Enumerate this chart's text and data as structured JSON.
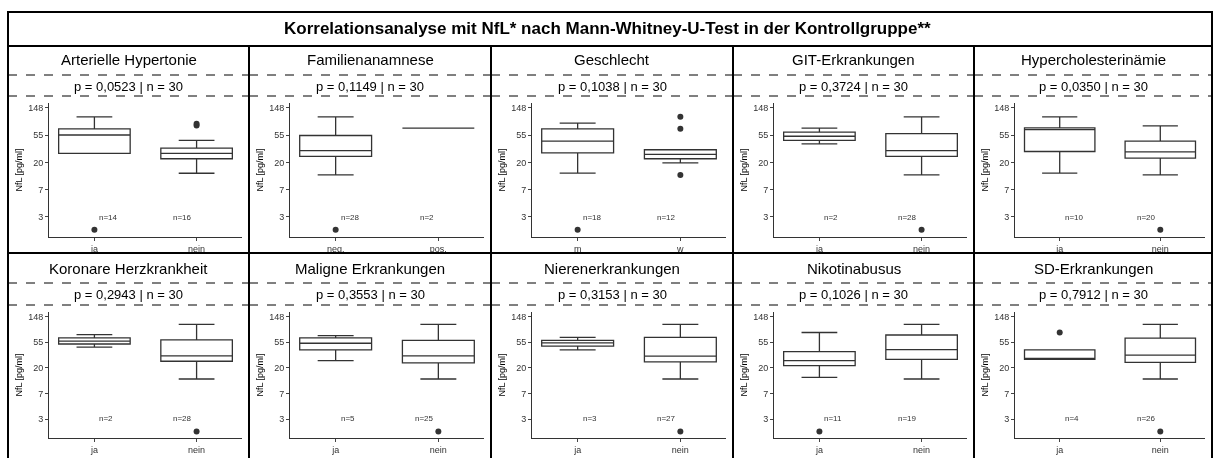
{
  "chart_data": [
    {
      "type": "other",
      "title": "Korrelationsanalyse mit NfL* nach Mann-Whitney-U-Test in der Kontrollgruppe**"
    },
    {
      "type": "box",
      "title": "Arterielle Hypertonie",
      "subtitle": "p = 0,0523 | n = 30",
      "ylabel": "NfL [pg/ml]",
      "categories": [
        "ja",
        "nein"
      ],
      "log": true,
      "ylim": [
        1.3,
        178
      ],
      "yticks": [
        {
          "value": 148.41,
          "label": "148"
        },
        {
          "value": 54.6,
          "label": "55"
        },
        {
          "value": 20.09,
          "label": "20"
        },
        {
          "value": 7.389,
          "label": "7"
        },
        {
          "value": 2.718,
          "label": "3"
        }
      ],
      "boxes": [
        {
          "low": 28,
          "q1": 28,
          "median": 55,
          "q3": 69,
          "high": 107
        },
        {
          "low": 13.5,
          "q1": 23,
          "median": 28,
          "q3": 34,
          "high": 45
        }
      ],
      "series": [
        {
          "type": "scatter",
          "x": [
            "ja",
            "nein",
            "nein"
          ],
          "values": [
            1.7,
            78,
            83
          ],
          "color": "#333333"
        }
      ],
      "annotations": [
        "n=14",
        "n=16"
      ]
    },
    {
      "type": "box",
      "color": "#333333",
      "title": "Familienanamnese",
      "subtitle": "p = 0,1149 | n = 30",
      "ylabel": "NfL [pg/ml]",
      "categories": [
        "neg.",
        "pos."
      ],
      "log": true,
      "ylim": [
        1.3,
        178
      ],
      "yticks": [
        {
          "value": 148.41,
          "label": "148"
        },
        {
          "value": 54.6,
          "label": "55"
        },
        {
          "value": 20.09,
          "label": "20"
        },
        {
          "value": 7.389,
          "label": "7"
        },
        {
          "value": 2.718,
          "label": "3"
        }
      ],
      "boxes": [
        {
          "low": 12.7,
          "q1": 25,
          "median": 31,
          "q3": 54,
          "high": 107
        },
        {
          "low": 71,
          "q1": 71,
          "median": 71,
          "q3": 71,
          "high": 71
        }
      ],
      "series": [
        {
          "type": "scatter",
          "x": [
            "neg."
          ],
          "values": [
            1.7
          ],
          "color": "#333333"
        }
      ],
      "annotations": [
        "n=28",
        "n=2"
      ]
    },
    {
      "type": "box",
      "title": "Geschlecht",
      "subtitle": "p = 0,1038 | n = 30",
      "ylabel": "NfL [pg/ml]",
      "categories": [
        "m",
        "w"
      ],
      "log": true,
      "ylim": [
        1.3,
        178
      ],
      "yticks": [
        {
          "value": 148.41,
          "label": "148"
        },
        {
          "value": 54.6,
          "label": "55"
        },
        {
          "value": 20.09,
          "label": "20"
        },
        {
          "value": 7.389,
          "label": "7"
        },
        {
          "value": 2.718,
          "label": "3"
        }
      ],
      "boxes": [
        {
          "low": 13.6,
          "q1": 28.6,
          "median": 44,
          "q3": 69,
          "high": 85
        },
        {
          "low": 19.7,
          "q1": 23,
          "median": 27,
          "q3": 32,
          "high": 32
        }
      ],
      "series": [
        {
          "type": "scatter",
          "x": [
            "m",
            "w",
            "w",
            "w"
          ],
          "values": [
            1.7,
            12.7,
            69,
            107
          ],
          "color": "#333333"
        }
      ],
      "annotations": [
        "n=18",
        "n=12"
      ]
    },
    {
      "type": "box",
      "title": "GIT-Erkrankungen",
      "subtitle": "p = 0,3724 | n = 30",
      "ylabel": "NfL [pg/ml]",
      "categories": [
        "ja",
        "nein"
      ],
      "log": true,
      "ylim": [
        1.3,
        178
      ],
      "yticks": [
        {
          "value": 148.41,
          "label": "148"
        },
        {
          "value": 54.6,
          "label": "55"
        },
        {
          "value": 20.09,
          "label": "20"
        },
        {
          "value": 7.389,
          "label": "7"
        },
        {
          "value": 2.718,
          "label": "3"
        }
      ],
      "boxes": [
        {
          "low": 39.6,
          "q1": 45,
          "median": 52.5,
          "q3": 61,
          "high": 71
        },
        {
          "low": 12.7,
          "q1": 25,
          "median": 31,
          "q3": 58,
          "high": 107
        }
      ],
      "series": [
        {
          "type": "scatter",
          "x": [
            "nein"
          ],
          "values": [
            1.7
          ],
          "color": "#333333"
        }
      ],
      "annotations": [
        "n=2",
        "n=28"
      ]
    },
    {
      "type": "box",
      "title": "Hypercholesterinämie",
      "subtitle": "p = 0,0350 | n = 30",
      "ylabel": "NfL [pg/ml]",
      "categories": [
        "ja",
        "nein"
      ],
      "log": true,
      "ylim": [
        1.3,
        178
      ],
      "yticks": [
        {
          "value": 148.41,
          "label": "148"
        },
        {
          "value": 54.6,
          "label": "55"
        },
        {
          "value": 20.09,
          "label": "20"
        },
        {
          "value": 7.389,
          "label": "7"
        },
        {
          "value": 2.718,
          "label": "3"
        }
      ],
      "boxes": [
        {
          "low": 13.6,
          "q1": 30,
          "median": 67,
          "q3": 71.5,
          "high": 107
        },
        {
          "low": 12.7,
          "q1": 23.6,
          "median": 29.7,
          "q3": 44,
          "high": 77
        }
      ],
      "series": [
        {
          "type": "scatter",
          "x": [
            "nein"
          ],
          "values": [
            1.7
          ],
          "color": "#333333"
        }
      ],
      "annotations": [
        "n=10",
        "n=20"
      ]
    },
    {
      "type": "box",
      "title": "Koronare Herzkrankheit",
      "subtitle": "p = 0,2943 | n = 30",
      "ylabel": "NfL [pg/ml]",
      "categories": [
        "ja",
        "nein"
      ],
      "log": true,
      "ylim": [
        1.3,
        178
      ],
      "yticks": [
        {
          "value": 148.41,
          "label": "148"
        },
        {
          "value": 54.6,
          "label": "55"
        },
        {
          "value": 20.09,
          "label": "20"
        },
        {
          "value": 7.389,
          "label": "7"
        },
        {
          "value": 2.718,
          "label": "3"
        }
      ],
      "boxes": [
        {
          "low": 45,
          "q1": 51,
          "median": 57,
          "q3": 65,
          "high": 73.5
        },
        {
          "low": 13,
          "q1": 26,
          "median": 32,
          "q3": 60,
          "high": 110
        }
      ],
      "series": [
        {
          "type": "scatter",
          "x": [
            "nein"
          ],
          "values": [
            1.67
          ],
          "color": "#333333"
        }
      ],
      "annotations": [
        "n=2",
        "n=28"
      ]
    },
    {
      "type": "box",
      "title": "Maligne Erkrankungen",
      "subtitle": "p = 0,3553 | n = 30",
      "ylabel": "NfL [pg/ml]",
      "categories": [
        "ja",
        "nein"
      ],
      "log": true,
      "ylim": [
        1.3,
        178
      ],
      "yticks": [
        {
          "value": 148.41,
          "label": "148"
        },
        {
          "value": 54.6,
          "label": "55"
        },
        {
          "value": 20.09,
          "label": "20"
        },
        {
          "value": 7.389,
          "label": "7"
        },
        {
          "value": 2.718,
          "label": "3"
        }
      ],
      "boxes": [
        {
          "low": 26.6,
          "q1": 40.5,
          "median": 52.5,
          "q3": 65,
          "high": 71
        },
        {
          "low": 13,
          "q1": 24.5,
          "median": 32,
          "q3": 58.6,
          "high": 110
        }
      ],
      "series": [
        {
          "type": "scatter",
          "x": [
            "nein"
          ],
          "values": [
            1.67
          ],
          "color": "#333333"
        }
      ],
      "annotations": [
        "n=5",
        "n=25"
      ]
    },
    {
      "type": "box",
      "title": "Nierenerkrankungen",
      "subtitle": "p = 0,3153 | n = 30",
      "ylabel": "NfL [pg/ml]",
      "categories": [
        "ja",
        "nein"
      ],
      "log": true,
      "ylim": [
        1.3,
        178
      ],
      "yticks": [
        {
          "value": 148.41,
          "label": "148"
        },
        {
          "value": 54.6,
          "label": "55"
        },
        {
          "value": 20.09,
          "label": "20"
        },
        {
          "value": 7.389,
          "label": "7"
        },
        {
          "value": 2.718,
          "label": "3"
        }
      ],
      "boxes": [
        {
          "low": 40.5,
          "q1": 47,
          "median": 53.3,
          "q3": 58.6,
          "high": 66
        },
        {
          "low": 13,
          "q1": 25.3,
          "median": 31.9,
          "q3": 66,
          "high": 110
        }
      ],
      "series": [
        {
          "type": "scatter",
          "x": [
            "nein"
          ],
          "values": [
            1.67
          ],
          "color": "#333333"
        }
      ],
      "annotations": [
        "n=3",
        "n=27"
      ]
    },
    {
      "type": "box",
      "title": "Nikotinabusus",
      "subtitle": "p = 0,1026 | n = 30",
      "ylabel": "NfL [pg/ml]",
      "categories": [
        "ja",
        "nein"
      ],
      "log": true,
      "ylim": [
        1.3,
        178
      ],
      "yticks": [
        {
          "value": 148.41,
          "label": "148"
        },
        {
          "value": 54.6,
          "label": "55"
        },
        {
          "value": 20.09,
          "label": "20"
        },
        {
          "value": 7.389,
          "label": "7"
        },
        {
          "value": 2.718,
          "label": "3"
        }
      ],
      "boxes": [
        {
          "low": 13.9,
          "q1": 22,
          "median": 26.6,
          "q3": 38,
          "high": 80
        },
        {
          "low": 13,
          "q1": 28,
          "median": 41,
          "q3": 72.5,
          "high": 110
        }
      ],
      "series": [
        {
          "type": "scatter",
          "x": [
            "ja"
          ],
          "values": [
            1.67
          ],
          "color": "#333333"
        }
      ],
      "annotations": [
        "n=11",
        "n=19"
      ]
    },
    {
      "type": "box",
      "title": "SD-Erkrankungen",
      "subtitle": "p = 0,7912 | n = 30",
      "ylabel": "NfL [pg/ml]",
      "categories": [
        "ja",
        "nein"
      ],
      "log": true,
      "ylim": [
        1.3,
        178
      ],
      "yticks": [
        {
          "value": 148.41,
          "label": "148"
        },
        {
          "value": 54.6,
          "label": "55"
        },
        {
          "value": 20.09,
          "label": "20"
        },
        {
          "value": 7.389,
          "label": "7"
        },
        {
          "value": 2.718,
          "label": "3"
        }
      ],
      "boxes": [
        {
          "low": 28,
          "q1": 28,
          "median": 29,
          "q3": 40.5,
          "high": 40.5
        },
        {
          "low": 13,
          "q1": 25,
          "median": 33,
          "q3": 64,
          "high": 110
        }
      ],
      "series": [
        {
          "type": "scatter",
          "x": [
            "ja",
            "nein"
          ],
          "values": [
            80,
            1.67
          ],
          "color": "#333333"
        }
      ],
      "annotations": [
        "n=4",
        "n=26"
      ]
    }
  ]
}
